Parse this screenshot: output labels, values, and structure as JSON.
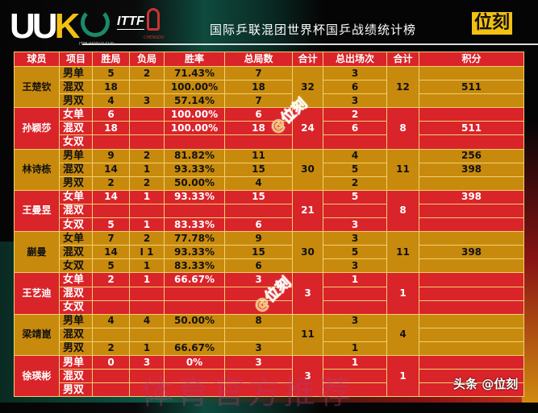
{
  "header": {
    "logo": "UUK",
    "world_cup_logo": "ITTF WORLD CUP",
    "ittf_logo": "ITTF",
    "chengdu_logo": "CHENGDU",
    "title": "国际乒联混团世界杯国乒战绩统计榜",
    "brand": "位刻"
  },
  "table": {
    "columns": [
      "球员",
      "项目",
      "胜局",
      "负局",
      "胜率",
      "总局数",
      "合计",
      "总出场次",
      "合计",
      "积分"
    ],
    "players": [
      {
        "name": "王楚钦",
        "color": "gold",
        "total_games": "32",
        "total_matches": "12",
        "rows": [
          {
            "event": "男单",
            "won": "5",
            "lost": "2",
            "rate": "71.43%",
            "games": "7",
            "matches": "3",
            "points": ""
          },
          {
            "event": "混双",
            "won": "18",
            "lost": "",
            "rate": "100.00%",
            "games": "18",
            "matches": "6",
            "points": "511"
          },
          {
            "event": "男双",
            "won": "4",
            "lost": "3",
            "rate": "57.14%",
            "games": "7",
            "matches": "3",
            "points": ""
          }
        ]
      },
      {
        "name": "孙颖莎",
        "color": "red",
        "total_games": "24",
        "total_matches": "8",
        "rows": [
          {
            "event": "女单",
            "won": "6",
            "lost": "",
            "rate": "100.00%",
            "games": "6",
            "matches": "2",
            "points": ""
          },
          {
            "event": "混双",
            "won": "18",
            "lost": "",
            "rate": "100.00%",
            "games": "18",
            "matches": "6",
            "points": "511"
          },
          {
            "event": "女双",
            "won": "",
            "lost": "",
            "rate": "",
            "games": "",
            "matches": "",
            "points": ""
          }
        ]
      },
      {
        "name": "林诗栋",
        "color": "gold",
        "total_games": "30",
        "total_matches": "11",
        "rows": [
          {
            "event": "男单",
            "won": "9",
            "lost": "2",
            "rate": "81.82%",
            "games": "11",
            "matches": "4",
            "points": "256"
          },
          {
            "event": "混双",
            "won": "14",
            "lost": "1",
            "rate": "93.33%",
            "games": "15",
            "matches": "5",
            "points": "398"
          },
          {
            "event": "男双",
            "won": "2",
            "lost": "2",
            "rate": "50.00%",
            "games": "4",
            "matches": "2",
            "points": ""
          }
        ]
      },
      {
        "name": "王曼昱",
        "color": "red",
        "total_games": "21",
        "total_matches": "8",
        "rows": [
          {
            "event": "女单",
            "won": "14",
            "lost": "1",
            "rate": "93.33%",
            "games": "15",
            "matches": "5",
            "points": "398"
          },
          {
            "event": "混双",
            "won": "",
            "lost": "",
            "rate": "",
            "games": "",
            "matches": "",
            "points": ""
          },
          {
            "event": "女双",
            "won": "5",
            "lost": "1",
            "rate": "83.33%",
            "games": "6",
            "matches": "3",
            "points": ""
          }
        ]
      },
      {
        "name": "蒯曼",
        "color": "gold",
        "total_games": "30",
        "total_matches": "11",
        "rows": [
          {
            "event": "女单",
            "won": "7",
            "lost": "2",
            "rate": "77.78%",
            "games": "9",
            "matches": "3",
            "points": ""
          },
          {
            "event": "混双",
            "won": "14",
            "lost": "I 1",
            "rate": "93.33%",
            "games": "15",
            "matches": "5",
            "points": "398"
          },
          {
            "event": "女双",
            "won": "5",
            "lost": "1",
            "rate": "83.33%",
            "games": "6",
            "matches": "3",
            "points": ""
          }
        ]
      },
      {
        "name": "王艺迪",
        "color": "red",
        "total_games": "3",
        "total_matches": "1",
        "rows": [
          {
            "event": "女单",
            "won": "2",
            "lost": "1",
            "rate": "66.67%",
            "games": "3",
            "matches": "1",
            "points": ""
          },
          {
            "event": "混双",
            "won": "",
            "lost": "",
            "rate": "",
            "games": "",
            "matches": "",
            "points": ""
          },
          {
            "event": "女双",
            "won": "",
            "lost": "",
            "rate": "",
            "games": "",
            "matches": "",
            "points": ""
          }
        ]
      },
      {
        "name": "梁靖崑",
        "color": "gold",
        "total_games": "11",
        "total_matches": "4",
        "rows": [
          {
            "event": "男单",
            "won": "4",
            "lost": "4",
            "rate": "50.00%",
            "games": "8",
            "matches": "3",
            "points": ""
          },
          {
            "event": "混双",
            "won": "",
            "lost": "",
            "rate": "",
            "games": "",
            "matches": "",
            "points": ""
          },
          {
            "event": "男双",
            "won": "2",
            "lost": "1",
            "rate": "66.67%",
            "games": "3",
            "matches": "1",
            "points": ""
          }
        ]
      },
      {
        "name": "徐瑛彬",
        "color": "red",
        "total_games": "3",
        "total_matches": "1",
        "rows": [
          {
            "event": "男单",
            "won": "0",
            "lost": "3",
            "rate": "0%",
            "games": "3",
            "matches": "1",
            "points": ""
          },
          {
            "event": "混双",
            "won": "",
            "lost": "",
            "rate": "",
            "games": "",
            "matches": "",
            "points": ""
          },
          {
            "event": "男双",
            "won": "",
            "lost": "",
            "rate": "",
            "games": "",
            "matches": "",
            "points": ""
          }
        ]
      }
    ]
  },
  "watermarks": {
    "diag": "@位刻",
    "bottom": "体育官方推荐",
    "toutiao": "头条 @位刻"
  },
  "colors": {
    "red": "#d9242a",
    "gold": "#c88a0c",
    "accent": "#f2c010"
  }
}
